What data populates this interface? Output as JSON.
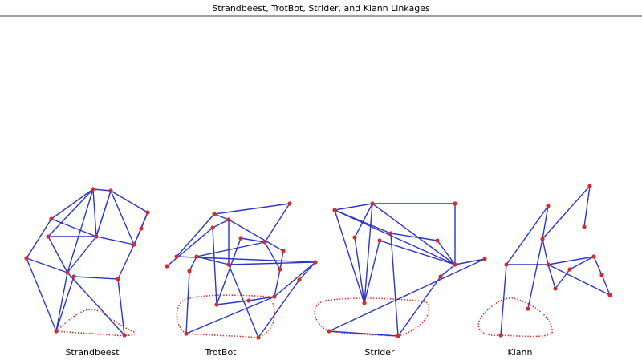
{
  "header": {
    "title": "Strandbeest, TrotBot, Strider, and Klann Linkages"
  },
  "linkages": [
    {
      "label": "Strandbeest"
    },
    {
      "label": "TrotBot"
    },
    {
      "label": "Strider"
    },
    {
      "label": "Klann"
    }
  ]
}
